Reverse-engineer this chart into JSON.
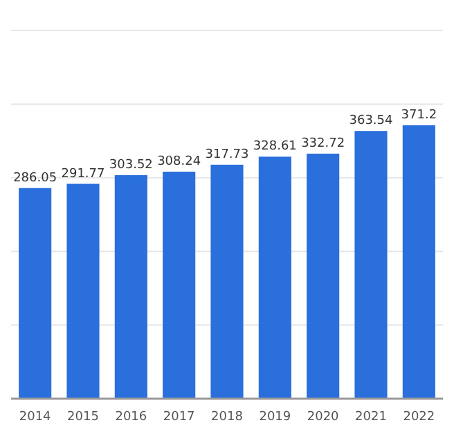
{
  "chart_data": {
    "type": "bar",
    "categories": [
      "2014",
      "2015",
      "2016",
      "2017",
      "2018",
      "2019",
      "2020",
      "2021",
      "2022"
    ],
    "values": [
      286.05,
      291.77,
      303.52,
      308.24,
      317.73,
      328.61,
      332.72,
      363.54,
      371.2
    ],
    "color": "#2a6fdb",
    "ylim": [
      0,
      500
    ],
    "yticks": [
      {
        "value": 0,
        "label": null
      },
      {
        "value": 100,
        "label": null
      },
      {
        "value": 200,
        "label": null
      },
      {
        "value": 300,
        "label": null
      },
      {
        "value": 400,
        "label": null
      },
      {
        "value": 500,
        "label": null
      }
    ],
    "grid": "y",
    "data_labels": true,
    "tick_labels": "x"
  }
}
